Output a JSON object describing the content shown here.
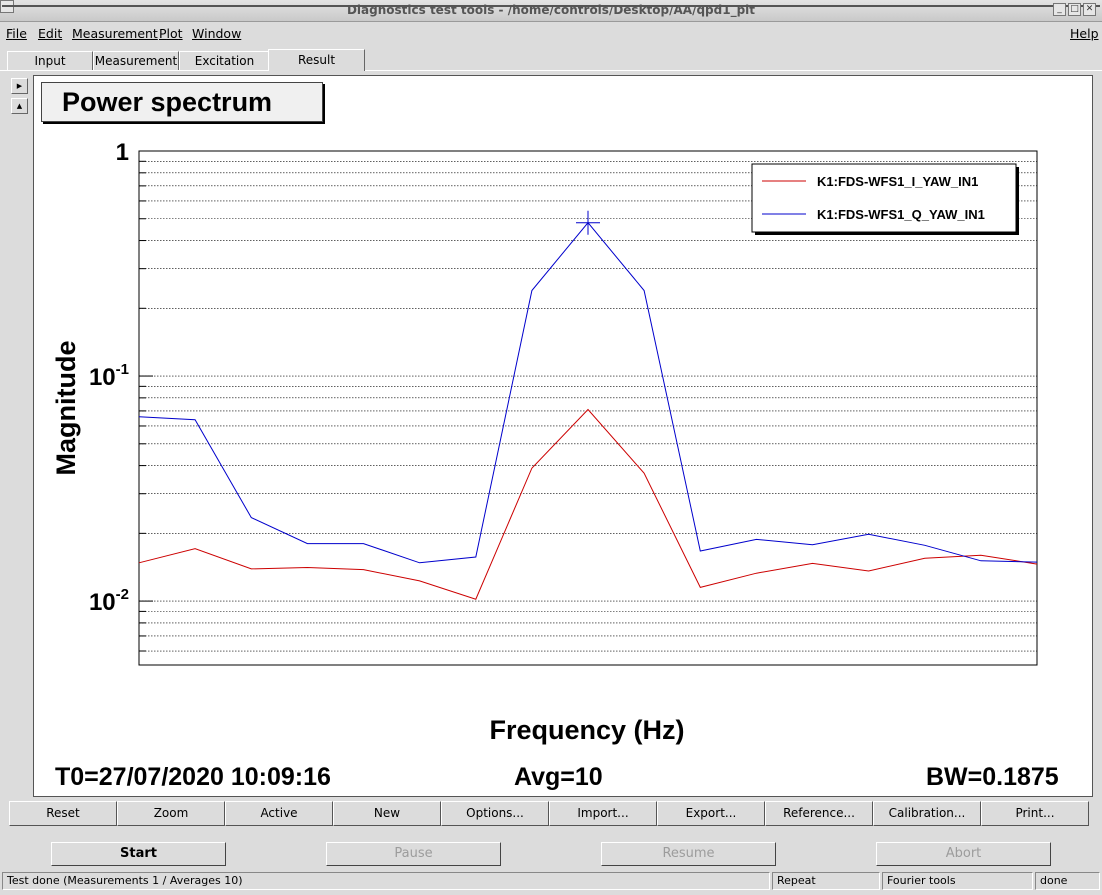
{
  "window": {
    "title": "Diagnostics test tools - /home/controls/Desktop/AA/qpd1_pit",
    "controls": [
      "minimize",
      "maximize",
      "close"
    ]
  },
  "menubar": {
    "items": [
      "File",
      "Edit",
      "Measurement",
      "Plot",
      "Window"
    ],
    "help": "Help"
  },
  "tabs": [
    {
      "label": "Input",
      "active": false
    },
    {
      "label": "Measurement",
      "active": false
    },
    {
      "label": "Excitation",
      "active": false
    },
    {
      "label": "Result",
      "active": true
    }
  ],
  "plot": {
    "title": "Power spectrum",
    "info": {
      "t0": "T0=27/07/2020 10:09:16",
      "avg": "Avg=10",
      "bw": "BW=0.1875"
    }
  },
  "chart_data": {
    "type": "line",
    "title": "Power spectrum",
    "xlabel": "Frequency (Hz)",
    "ylabel": "Magnitude",
    "yscale": "log",
    "ylim": [
      0.0052,
      1
    ],
    "yticks": [
      {
        "value": 1,
        "base": "1",
        "exp": ""
      },
      {
        "value": 0.1,
        "base": "10",
        "exp": "-1"
      },
      {
        "value": 0.01,
        "base": "10",
        "exp": "-2"
      }
    ],
    "grid": true,
    "legend_position": "top-right",
    "x": [
      0,
      1,
      2,
      3,
      4,
      5,
      6,
      7,
      8,
      9,
      10,
      11,
      12,
      13,
      14,
      15,
      16
    ],
    "xlim": [
      0,
      16
    ],
    "series": [
      {
        "name": "K1:FDS-WFS1_I_YAW_IN1",
        "color": "#cc0000",
        "values": [
          0.0148,
          0.0171,
          0.0139,
          0.0141,
          0.0138,
          0.0123,
          0.0102,
          0.039,
          0.071,
          0.037,
          0.0115,
          0.0133,
          0.0147,
          0.0136,
          0.0155,
          0.016,
          0.0146
        ]
      },
      {
        "name": "K1:FDS-WFS1_Q_YAW_IN1",
        "color": "#0000cc",
        "values": [
          0.066,
          0.064,
          0.0235,
          0.018,
          0.018,
          0.0148,
          0.0157,
          0.24,
          0.48,
          0.24,
          0.0167,
          0.0188,
          0.0178,
          0.0198,
          0.0177,
          0.0151,
          0.0149
        ],
        "marker_index": 8
      }
    ]
  },
  "toolbar": {
    "buttons": [
      "Reset",
      "Zoom",
      "Active",
      "New",
      "Options...",
      "Import...",
      "Export...",
      "Reference...",
      "Calibration...",
      "Print..."
    ]
  },
  "controls": {
    "start": "Start",
    "pause": "Pause",
    "resume": "Resume",
    "abort": "Abort"
  },
  "statusbar": {
    "message": "Test done (Measurements 1 / Averages 10)",
    "mode": "Repeat",
    "tool": "Fourier tools",
    "state": "done"
  }
}
